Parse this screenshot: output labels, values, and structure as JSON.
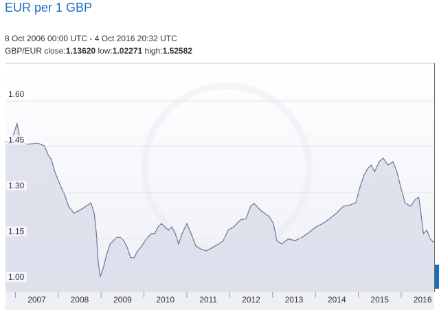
{
  "chart_data": {
    "type": "area",
    "title": "EUR per 1 GBP",
    "subtitle": "8 Oct 2006 00:00 UTC - 4 Oct 2016 20:32 UTC",
    "stats": {
      "pair": "GBP/EUR",
      "close_label": "close:",
      "close": "1.13620",
      "low_label": "low:",
      "low": "1.02271",
      "high_label": "high:",
      "high": "1.52582"
    },
    "line_color": "#6e7294",
    "fill_color": "#d9dcea",
    "grid": true,
    "xlim": [
      2006.77,
      2016.77
    ],
    "xticks": [
      2007,
      2008,
      2009,
      2010,
      2011,
      2012,
      2013,
      2014,
      2015,
      2016
    ],
    "ylim": [
      0.973,
      1.724
    ],
    "yticks": [
      {
        "value": 1,
        "label": "1.00"
      },
      1.15,
      {
        "value": 1.3,
        "label": "1.30"
      },
      1.45,
      {
        "value": 1.6,
        "label": "1.60"
      }
    ],
    "x": [
      2006.77,
      2006.88,
      2007.04,
      2007.12,
      2007.28,
      2007.52,
      2007.68,
      2007.76,
      2007.84,
      2007.92,
      2008.05,
      2008.16,
      2008.24,
      2008.37,
      2008.53,
      2008.65,
      2008.76,
      2008.84,
      2008.89,
      2008.93,
      2008.98,
      2009.05,
      2009.13,
      2009.21,
      2009.29,
      2009.37,
      2009.45,
      2009.53,
      2009.61,
      2009.69,
      2009.77,
      2009.85,
      2009.93,
      2010.01,
      2010.09,
      2010.17,
      2010.25,
      2010.33,
      2010.41,
      2010.49,
      2010.57,
      2010.65,
      2010.73,
      2010.81,
      2010.89,
      2011.0,
      2011.1,
      2011.21,
      2011.32,
      2011.45,
      2011.61,
      2011.74,
      2011.85,
      2011.96,
      2012.09,
      2012.25,
      2012.38,
      2012.49,
      2012.57,
      2012.7,
      2012.81,
      2012.92,
      2013.02,
      2013.1,
      2013.21,
      2013.37,
      2013.53,
      2013.69,
      2013.85,
      2014.01,
      2014.17,
      2014.33,
      2014.49,
      2014.65,
      2014.81,
      2014.94,
      2015.05,
      2015.13,
      2015.22,
      2015.3,
      2015.38,
      2015.49,
      2015.58,
      2015.69,
      2015.81,
      2015.9,
      2015.98,
      2016.09,
      2016.22,
      2016.33,
      2016.41,
      2016.46,
      2016.52,
      2016.6,
      2016.68,
      2016.76
    ],
    "values": [
      1.469,
      1.458,
      1.526,
      1.469,
      1.458,
      1.462,
      1.453,
      1.424,
      1.408,
      1.368,
      1.323,
      1.289,
      1.255,
      1.232,
      1.244,
      1.255,
      1.266,
      1.232,
      1.165,
      1.074,
      1.023,
      1.052,
      1.097,
      1.131,
      1.142,
      1.153,
      1.153,
      1.142,
      1.12,
      1.086,
      1.086,
      1.108,
      1.12,
      1.138,
      1.153,
      1.165,
      1.165,
      1.187,
      1.198,
      1.187,
      1.176,
      1.187,
      1.165,
      1.131,
      1.165,
      1.198,
      1.165,
      1.124,
      1.115,
      1.108,
      1.12,
      1.131,
      1.142,
      1.176,
      1.187,
      1.21,
      1.214,
      1.255,
      1.264,
      1.244,
      1.232,
      1.221,
      1.198,
      1.142,
      1.131,
      1.147,
      1.142,
      1.153,
      1.169,
      1.187,
      1.198,
      1.214,
      1.232,
      1.255,
      1.259,
      1.266,
      1.323,
      1.356,
      1.379,
      1.39,
      1.368,
      1.401,
      1.413,
      1.39,
      1.401,
      1.368,
      1.323,
      1.266,
      1.255,
      1.278,
      1.284,
      1.232,
      1.165,
      1.176,
      1.147,
      1.136
    ]
  }
}
